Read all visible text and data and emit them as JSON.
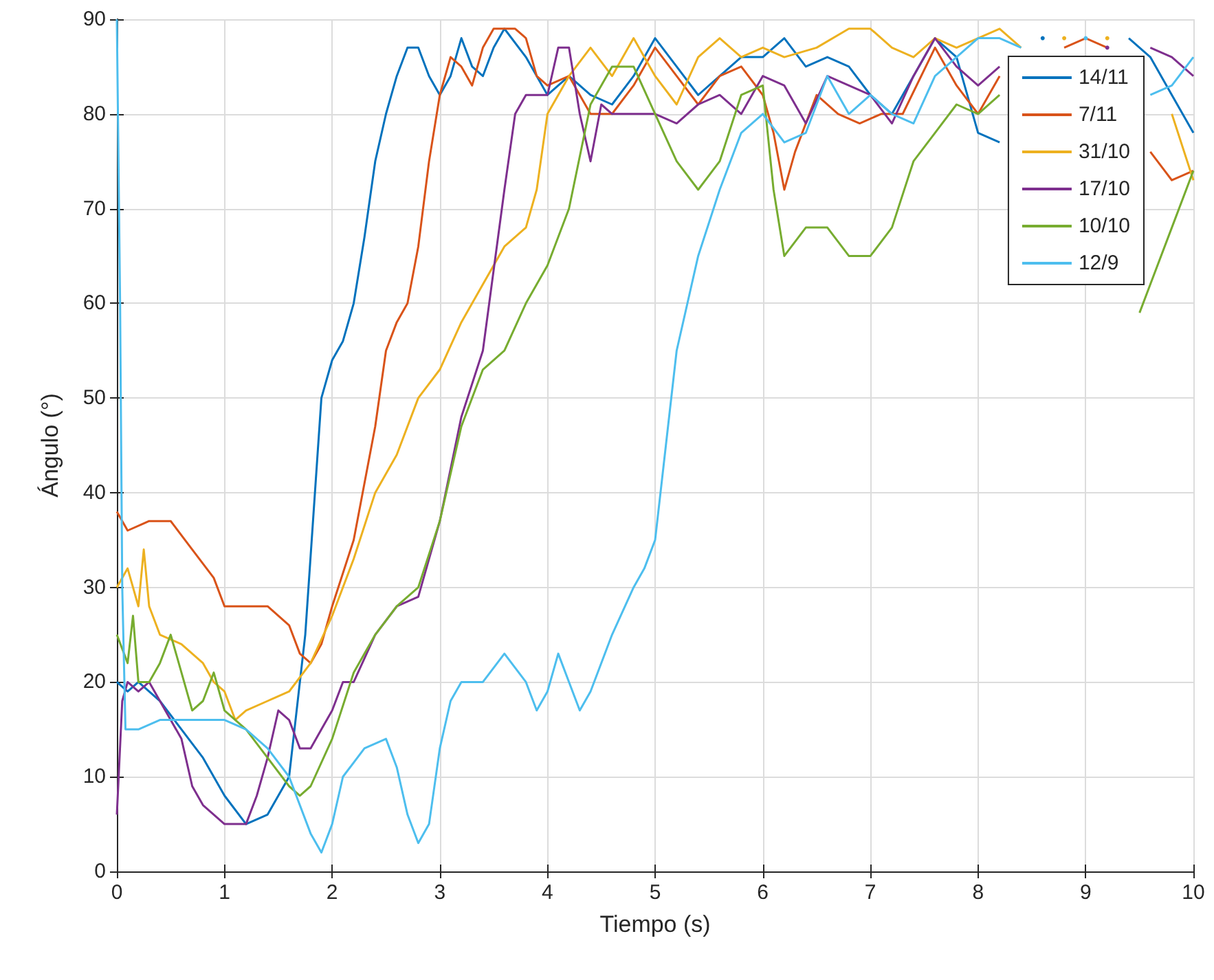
{
  "chart_data": {
    "type": "line",
    "xlabel": "Tiempo (s)",
    "ylabel": "Ángulo (°)",
    "xlim": [
      0,
      10
    ],
    "xticks": [
      0,
      1,
      2,
      3,
      4,
      5,
      6,
      7,
      8,
      9,
      10
    ],
    "ylim": [
      0,
      90
    ],
    "yticks": [
      0,
      10,
      20,
      30,
      40,
      50,
      60,
      70,
      80,
      90
    ],
    "grid": true,
    "legend": "top right",
    "marker": "none",
    "line_style": "solid",
    "series": [
      {
        "name": "14/11",
        "color": "#0072bd",
        "x": [
          0,
          0.1,
          0.2,
          0.4,
          0.6,
          0.8,
          1.0,
          1.2,
          1.4,
          1.6,
          1.75,
          1.9,
          2.0,
          2.1,
          2.2,
          2.3,
          2.4,
          2.5,
          2.6,
          2.7,
          2.8,
          2.9,
          3.0,
          3.1,
          3.2,
          3.3,
          3.4,
          3.5,
          3.6,
          3.8,
          4.0,
          4.2,
          4.4,
          4.6,
          4.8,
          5.0,
          5.2,
          5.4,
          5.6,
          5.8,
          6.0,
          6.2,
          6.4,
          6.6,
          6.8,
          7.0,
          7.2,
          7.4,
          7.6,
          7.8,
          8.0,
          8.2,
          8.4,
          8.6,
          8.8,
          9.0,
          9.2,
          9.4,
          9.6,
          9.8,
          10
        ],
        "values": [
          20,
          19,
          20,
          18,
          15,
          12,
          8,
          5,
          6,
          10,
          25,
          50,
          54,
          56,
          60,
          67,
          75,
          80,
          84,
          87,
          87,
          84,
          82,
          84,
          88,
          85,
          84,
          87,
          89,
          86,
          82,
          84,
          82,
          81,
          84,
          88,
          85,
          82,
          84,
          86,
          86,
          88,
          85,
          86,
          85,
          82,
          80,
          84,
          88,
          86,
          78,
          77,
          null,
          88,
          null,
          null,
          null,
          88,
          86,
          82,
          78
        ]
      },
      {
        "name": "7/11",
        "color": "#d95319",
        "x": [
          0,
          0.1,
          0.3,
          0.5,
          0.7,
          0.9,
          1.0,
          1.2,
          1.4,
          1.6,
          1.7,
          1.8,
          1.9,
          2.0,
          2.2,
          2.4,
          2.5,
          2.6,
          2.7,
          2.8,
          2.9,
          3.0,
          3.1,
          3.2,
          3.3,
          3.4,
          3.5,
          3.7,
          3.8,
          3.9,
          4.0,
          4.2,
          4.4,
          4.6,
          4.8,
          5.0,
          5.2,
          5.4,
          5.6,
          5.8,
          6.0,
          6.1,
          6.2,
          6.3,
          6.5,
          6.7,
          6.9,
          7.1,
          7.3,
          7.6,
          7.8,
          8.0,
          8.2,
          8.4,
          8.6,
          8.8,
          9.0,
          9.2,
          9.4,
          9.6,
          9.8,
          10
        ],
        "values": [
          38,
          36,
          37,
          37,
          34,
          31,
          28,
          28,
          28,
          26,
          23,
          22,
          24,
          28,
          35,
          47,
          55,
          58,
          60,
          66,
          75,
          82,
          86,
          85,
          83,
          87,
          89,
          89,
          88,
          84,
          83,
          84,
          80,
          80,
          83,
          87,
          84,
          81,
          84,
          85,
          82,
          78,
          72,
          76,
          82,
          80,
          79,
          80,
          80,
          87,
          83,
          80,
          84,
          null,
          null,
          87,
          88,
          87,
          null,
          76,
          73,
          74
        ]
      },
      {
        "name": "31/10",
        "color": "#edb120",
        "x": [
          0,
          0.1,
          0.2,
          0.25,
          0.3,
          0.4,
          0.6,
          0.8,
          0.9,
          1.0,
          1.1,
          1.2,
          1.4,
          1.6,
          1.8,
          2.0,
          2.2,
          2.4,
          2.6,
          2.8,
          3.0,
          3.2,
          3.4,
          3.6,
          3.8,
          3.9,
          4.0,
          4.2,
          4.4,
          4.6,
          4.8,
          5.0,
          5.2,
          5.4,
          5.6,
          5.8,
          6.0,
          6.2,
          6.5,
          6.8,
          7.0,
          7.2,
          7.4,
          7.6,
          7.8,
          8.0,
          8.2,
          8.4,
          8.6,
          8.8,
          9.0,
          9.2,
          9.5,
          9.8,
          10
        ],
        "values": [
          30,
          32,
          28,
          34,
          28,
          25,
          24,
          22,
          20,
          19,
          16,
          17,
          18,
          19,
          22,
          27,
          33,
          40,
          44,
          50,
          53,
          58,
          62,
          66,
          68,
          72,
          80,
          84,
          87,
          84,
          88,
          84,
          81,
          86,
          88,
          86,
          87,
          86,
          87,
          89,
          89,
          87,
          86,
          88,
          87,
          88,
          89,
          87,
          null,
          88,
          null,
          88,
          null,
          80,
          73
        ]
      },
      {
        "name": "17/10",
        "color": "#7e2f8e",
        "x": [
          0,
          0.05,
          0.1,
          0.2,
          0.3,
          0.4,
          0.6,
          0.7,
          0.8,
          1.0,
          1.2,
          1.3,
          1.4,
          1.5,
          1.6,
          1.7,
          1.8,
          1.9,
          2.0,
          2.1,
          2.2,
          2.4,
          2.6,
          2.8,
          3.0,
          3.2,
          3.4,
          3.6,
          3.7,
          3.8,
          4.0,
          4.1,
          4.2,
          4.3,
          4.4,
          4.5,
          4.6,
          4.8,
          5.0,
          5.2,
          5.4,
          5.6,
          5.8,
          6.0,
          6.2,
          6.4,
          6.6,
          6.8,
          7.0,
          7.2,
          7.4,
          7.6,
          7.8,
          8.0,
          8.2,
          8.4,
          8.6,
          8.8,
          9.0,
          9.2,
          9.4,
          9.6,
          9.8,
          10
        ],
        "values": [
          6,
          18,
          20,
          19,
          20,
          18,
          14,
          9,
          7,
          5,
          5,
          8,
          12,
          17,
          16,
          13,
          13,
          15,
          17,
          20,
          20,
          25,
          28,
          29,
          37,
          48,
          55,
          72,
          80,
          82,
          82,
          87,
          87,
          80,
          75,
          81,
          80,
          80,
          80,
          79,
          81,
          82,
          80,
          84,
          83,
          79,
          84,
          83,
          82,
          79,
          84,
          88,
          85,
          83,
          85,
          null,
          null,
          null,
          null,
          87,
          null,
          87,
          86,
          84
        ]
      },
      {
        "name": "10/10",
        "color": "#77ac30",
        "x": [
          0,
          0.1,
          0.15,
          0.2,
          0.3,
          0.4,
          0.5,
          0.6,
          0.7,
          0.8,
          0.9,
          1.0,
          1.2,
          1.4,
          1.6,
          1.7,
          1.8,
          2.0,
          2.2,
          2.4,
          2.6,
          2.8,
          3.0,
          3.2,
          3.4,
          3.6,
          3.8,
          4.0,
          4.2,
          4.4,
          4.6,
          4.8,
          5.0,
          5.2,
          5.4,
          5.6,
          5.8,
          6.0,
          6.1,
          6.2,
          6.4,
          6.6,
          6.8,
          7.0,
          7.2,
          7.4,
          7.6,
          7.8,
          8.0,
          8.2,
          8.4,
          8.6,
          8.8,
          9.0,
          9.2,
          9.4,
          9.5,
          9.6,
          9.8,
          10
        ],
        "values": [
          25,
          22,
          27,
          20,
          20,
          22,
          25,
          21,
          17,
          18,
          21,
          17,
          15,
          12,
          9,
          8,
          9,
          14,
          21,
          25,
          28,
          30,
          37,
          47,
          53,
          55,
          60,
          64,
          70,
          81,
          85,
          85,
          80,
          75,
          72,
          75,
          82,
          83,
          72,
          65,
          68,
          68,
          65,
          65,
          68,
          75,
          78,
          81,
          80,
          82,
          null,
          null,
          null,
          null,
          null,
          null,
          59,
          62,
          68,
          74
        ]
      },
      {
        "name": "12/9",
        "color": "#4dbeee",
        "x": [
          0,
          0.03,
          0.05,
          0.08,
          0.2,
          0.4,
          0.6,
          0.8,
          1.0,
          1.2,
          1.4,
          1.6,
          1.8,
          1.9,
          2.0,
          2.1,
          2.3,
          2.5,
          2.6,
          2.7,
          2.8,
          2.9,
          3.0,
          3.1,
          3.2,
          3.4,
          3.6,
          3.8,
          3.9,
          4.0,
          4.1,
          4.2,
          4.3,
          4.4,
          4.6,
          4.8,
          4.9,
          5.0,
          5.1,
          5.2,
          5.4,
          5.6,
          5.8,
          6.0,
          6.2,
          6.4,
          6.6,
          6.8,
          7.0,
          7.2,
          7.4,
          7.6,
          7.8,
          8.0,
          8.2,
          8.4,
          8.6,
          8.8,
          9.0,
          9.2,
          9.4,
          9.6,
          9.8,
          10
        ],
        "values": [
          90,
          60,
          30,
          15,
          15,
          16,
          16,
          16,
          16,
          15,
          13,
          10,
          4,
          2,
          5,
          10,
          13,
          14,
          11,
          6,
          3,
          5,
          13,
          18,
          20,
          20,
          23,
          20,
          17,
          19,
          23,
          20,
          17,
          19,
          25,
          30,
          32,
          35,
          45,
          55,
          65,
          72,
          78,
          80,
          77,
          78,
          84,
          80,
          82,
          80,
          79,
          84,
          86,
          88,
          88,
          87,
          null,
          null,
          88,
          null,
          null,
          82,
          83,
          86
        ]
      }
    ]
  }
}
